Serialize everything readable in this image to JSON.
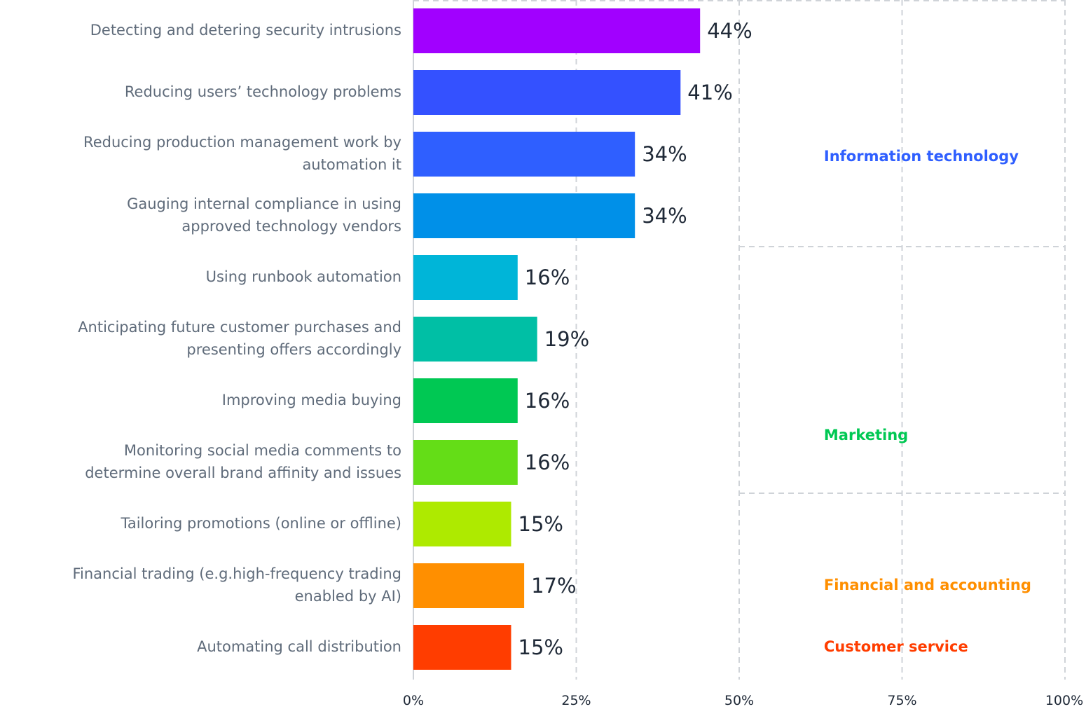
{
  "chart_data": {
    "type": "bar",
    "orientation": "horizontal",
    "categories": [
      "Detecting and detering security intrusions",
      "Reducing users’ technology problems",
      "Reducing production management work by automation it",
      "Gauging internal compliance in using approved technology vendors",
      "Using runbook automation",
      "Anticipating future customer purchases and presenting offers accordingly",
      "Improving media buying",
      "Monitoring social media comments to determine overall brand affinity and issues",
      "Tailoring promotions (online or offline)",
      "Financial trading (e.g.high-frequency trading enabled by AI)",
      "Automating call distribution"
    ],
    "category_lines": [
      [
        "Detecting and detering security intrusions"
      ],
      [
        "Reducing users’ technology problems"
      ],
      [
        "Reducing production management work by",
        "automation it"
      ],
      [
        "Gauging internal compliance in using",
        "approved technology vendors"
      ],
      [
        "Using runbook automation"
      ],
      [
        "Anticipating future customer purchases and",
        "presenting offers accordingly"
      ],
      [
        "Improving media buying"
      ],
      [
        "Monitoring social media comments to",
        "determine overall brand affinity and issues"
      ],
      [
        "Tailoring promotions (online or offline)"
      ],
      [
        "Financial trading (e.g.high-frequency trading",
        "enabled by AI)"
      ],
      [
        "Automating call distribution"
      ]
    ],
    "values": [
      44,
      41,
      34,
      34,
      16,
      19,
      16,
      16,
      15,
      17,
      15
    ],
    "value_labels": [
      "44%",
      "41%",
      "34%",
      "34%",
      "16%",
      "19%",
      "16%",
      "16%",
      "15%",
      "17%",
      "15%"
    ],
    "bar_colors": [
      "#a100ff",
      "#3451ff",
      "#2f5fff",
      "#0090e8",
      "#00b5d8",
      "#00bfa5",
      "#00c853",
      "#64dd17",
      "#aeea00",
      "#ff8f00",
      "#ff3d00"
    ],
    "xlim": [
      0,
      100
    ],
    "ticks": [
      0,
      25,
      50,
      75,
      100
    ],
    "tick_labels": [
      "0%",
      "25%",
      "50%",
      "75%",
      "100%"
    ],
    "grid": true,
    "title": "",
    "xlabel": "",
    "ylabel": "",
    "groups": [
      {
        "name": "Information technology",
        "color": "#2f5fff",
        "first_index": 0,
        "last_index": 3
      },
      {
        "name": "Marketing",
        "color": "#00c853",
        "first_index": 4,
        "last_index": 7
      },
      {
        "name": "Financial and accounting",
        "color": "#ff8f00",
        "first_index": 9,
        "last_index": 9
      },
      {
        "name": "Customer service",
        "color": "#ff3d00",
        "first_index": 10,
        "last_index": 10
      }
    ]
  }
}
